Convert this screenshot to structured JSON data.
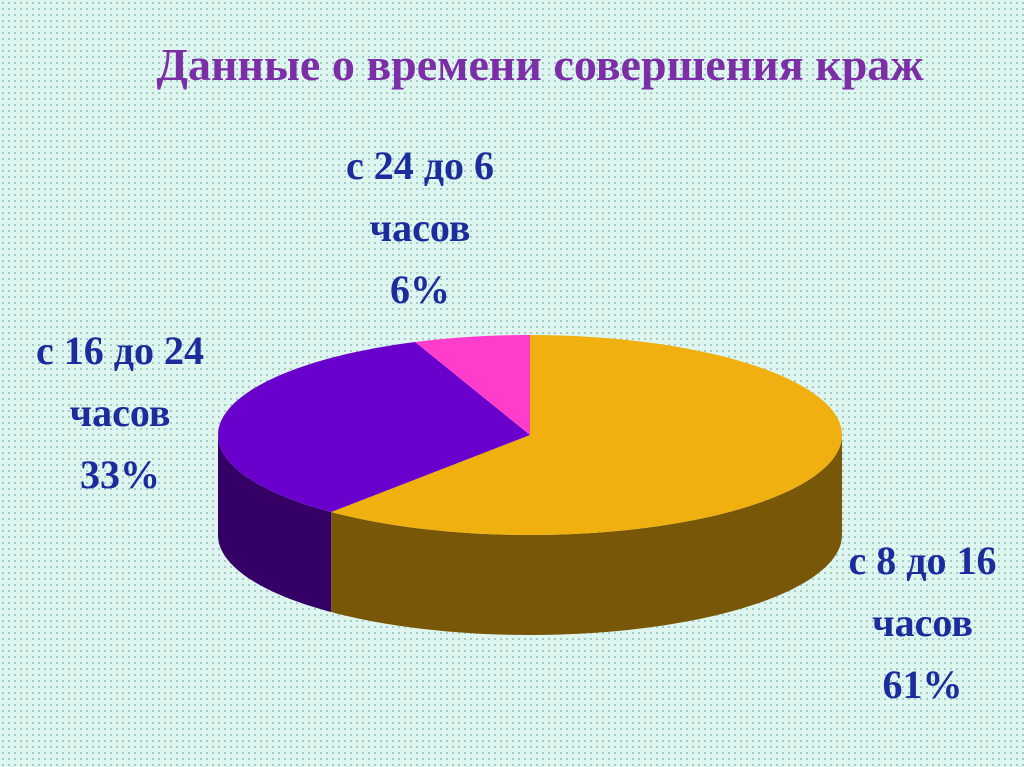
{
  "chart_data": {
    "type": "pie",
    "title": "Данные о времени совершения краж",
    "categories": [
      "с 8 до 16 часов",
      "с 16 до 24 часов",
      "с 24 до 6 часов"
    ],
    "values": [
      61,
      33,
      6
    ],
    "value_labels": [
      "61%",
      "33%",
      "6%"
    ],
    "colors": [
      "#f0b010",
      "#6a00cc",
      "#ff3ccc"
    ]
  }
}
